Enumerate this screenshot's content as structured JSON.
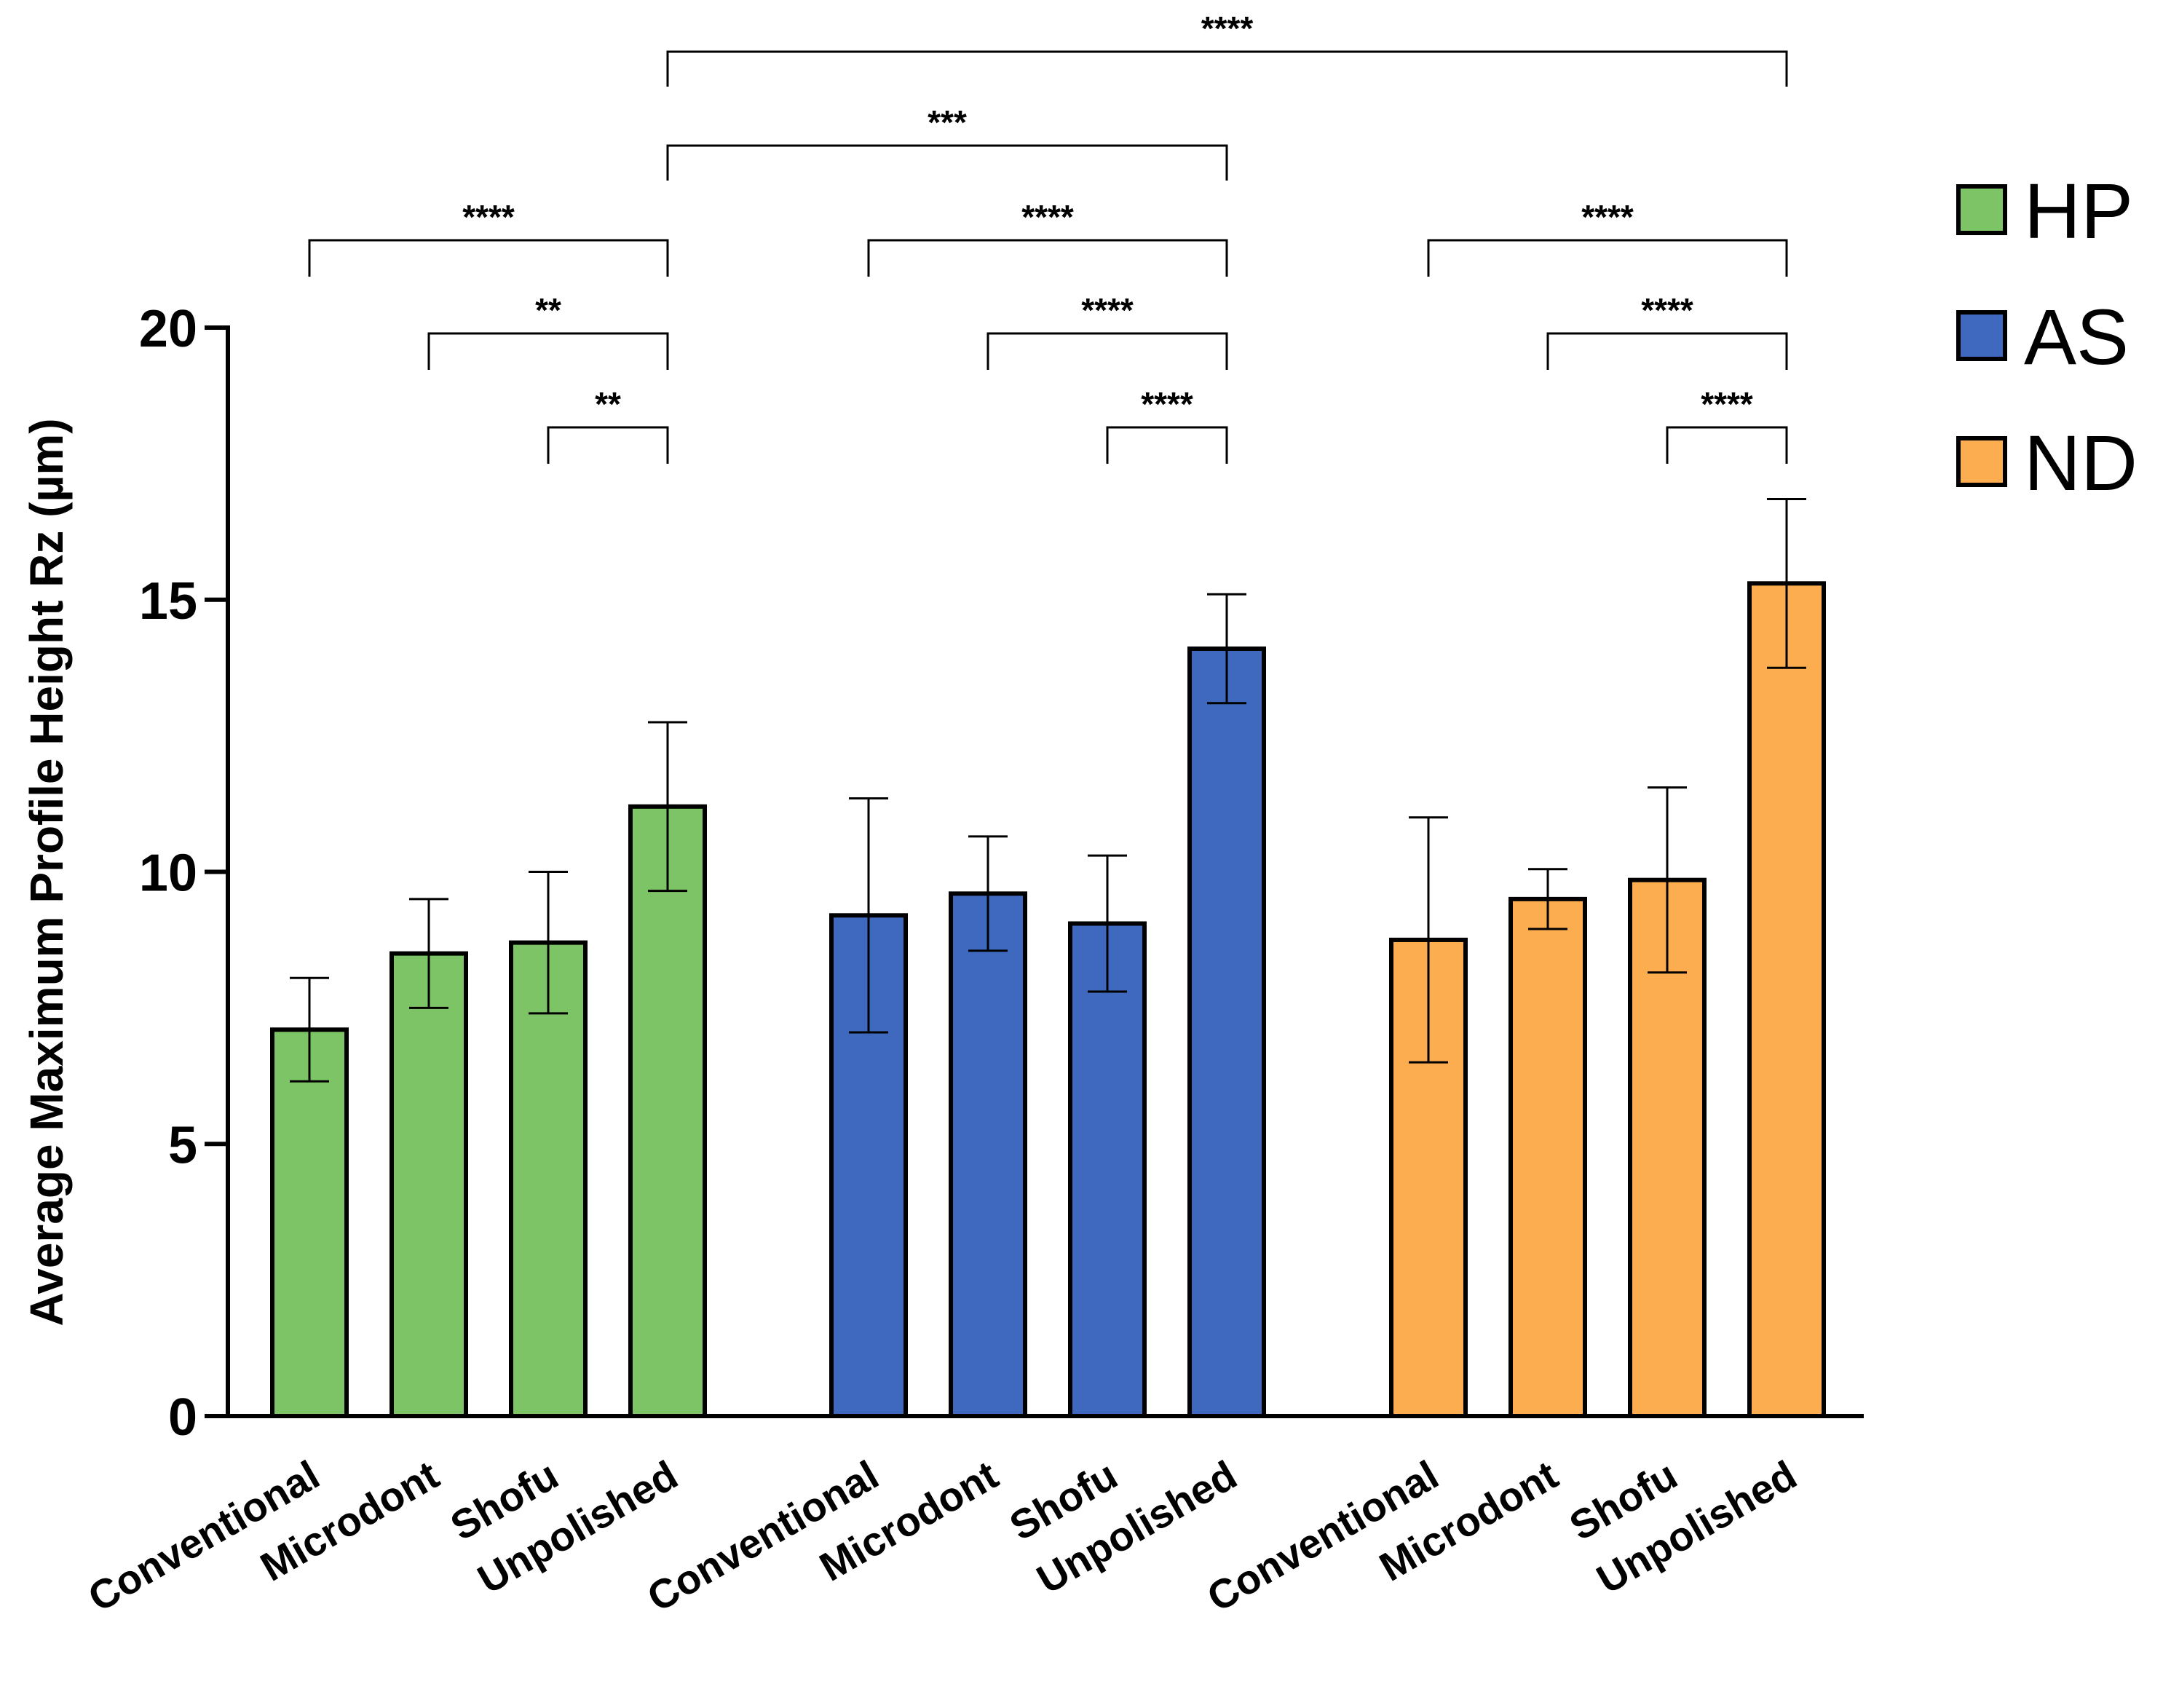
{
  "chart_data": {
    "type": "bar",
    "title": "",
    "xlabel": "",
    "ylabel": "Average Maximum Profile Height Rz (µm)",
    "ylim": [
      0,
      20
    ],
    "yticks": [
      "0",
      "5",
      "10",
      "15",
      "20"
    ],
    "grid": false,
    "legend_position": "top-right",
    "categories": [
      "Conventional",
      "Microdont",
      "Shofu",
      "Unpolished"
    ],
    "series": [
      {
        "name": "HP",
        "color": "#7dc466",
        "values": [
          7.1,
          8.5,
          8.7,
          11.2
        ],
        "errors": [
          0.95,
          1.0,
          1.3,
          1.55
        ]
      },
      {
        "name": "AS",
        "color": "#3f69bf",
        "values": [
          9.2,
          9.6,
          9.05,
          14.1
        ],
        "errors": [
          2.15,
          1.05,
          1.25,
          1.0
        ]
      },
      {
        "name": "ND",
        "color": "#fcad4f",
        "values": [
          8.75,
          9.5,
          9.85,
          15.3
        ],
        "errors": [
          2.25,
          0.55,
          1.7,
          1.55
        ]
      }
    ],
    "significance": [
      {
        "label": "****",
        "from_series": 0,
        "from_cat": 0,
        "to_series": 0,
        "to_cat": 3
      },
      {
        "label": "**",
        "from_series": 0,
        "from_cat": 1,
        "to_series": 0,
        "to_cat": 3
      },
      {
        "label": "**",
        "from_series": 0,
        "from_cat": 2,
        "to_series": 0,
        "to_cat": 3
      },
      {
        "label": "****",
        "from_series": 1,
        "from_cat": 0,
        "to_series": 1,
        "to_cat": 3
      },
      {
        "label": "****",
        "from_series": 1,
        "from_cat": 1,
        "to_series": 1,
        "to_cat": 3
      },
      {
        "label": "****",
        "from_series": 1,
        "from_cat": 2,
        "to_series": 1,
        "to_cat": 3
      },
      {
        "label": "****",
        "from_series": 2,
        "from_cat": 0,
        "to_series": 2,
        "to_cat": 3
      },
      {
        "label": "****",
        "from_series": 2,
        "from_cat": 1,
        "to_series": 2,
        "to_cat": 3
      },
      {
        "label": "****",
        "from_series": 2,
        "from_cat": 2,
        "to_series": 2,
        "to_cat": 3
      },
      {
        "label": "***",
        "from_series": 0,
        "from_cat": 3,
        "to_series": 1,
        "to_cat": 3
      },
      {
        "label": "****",
        "from_series": 0,
        "from_cat": 3,
        "to_series": 2,
        "to_cat": 3
      }
    ]
  }
}
